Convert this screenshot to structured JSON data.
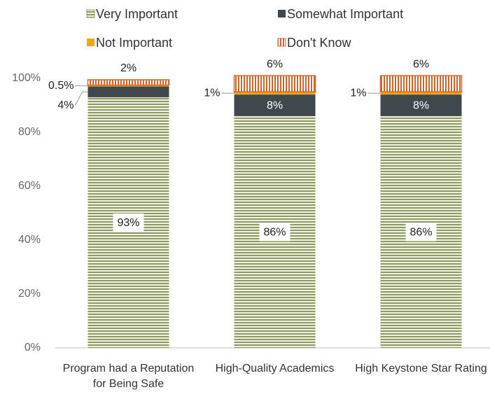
{
  "chart_data": {
    "type": "stacked_bar",
    "categories": [
      "Program had a Reputation for Being Safe",
      "High-Quality Academics",
      "High Keystone Star Rating"
    ],
    "series": [
      {
        "name": "Very Important",
        "color": "#8c9a63",
        "pattern": "horizontal",
        "values": [
          93,
          86,
          86
        ],
        "value_labels": [
          "93%",
          "86%",
          "86%"
        ]
      },
      {
        "name": "Somewhat Important",
        "color": "#3e484d",
        "values": [
          4,
          8,
          8
        ],
        "value_labels": [
          "4%",
          "8%",
          "8%"
        ]
      },
      {
        "name": "Not Important",
        "color": "#f5a31a",
        "values": [
          0.5,
          1,
          1
        ],
        "value_labels": [
          "0.5%",
          "1%",
          "1%"
        ]
      },
      {
        "name": "Don't Know",
        "color": "#d2642a",
        "pattern": "vertical",
        "values": [
          2,
          6,
          6
        ],
        "value_labels": [
          "2%",
          "6%",
          "6%"
        ]
      }
    ],
    "ylim": [
      0,
      100
    ],
    "yticks": [
      {
        "value": 0,
        "label": "0%"
      },
      {
        "value": 20,
        "label": "20%"
      },
      {
        "value": 40,
        "label": "40%"
      },
      {
        "value": 60,
        "label": "60%"
      },
      {
        "value": 80,
        "label": "80%"
      },
      {
        "value": 100,
        "label": "100%"
      }
    ],
    "grid": false,
    "legend": "top"
  }
}
